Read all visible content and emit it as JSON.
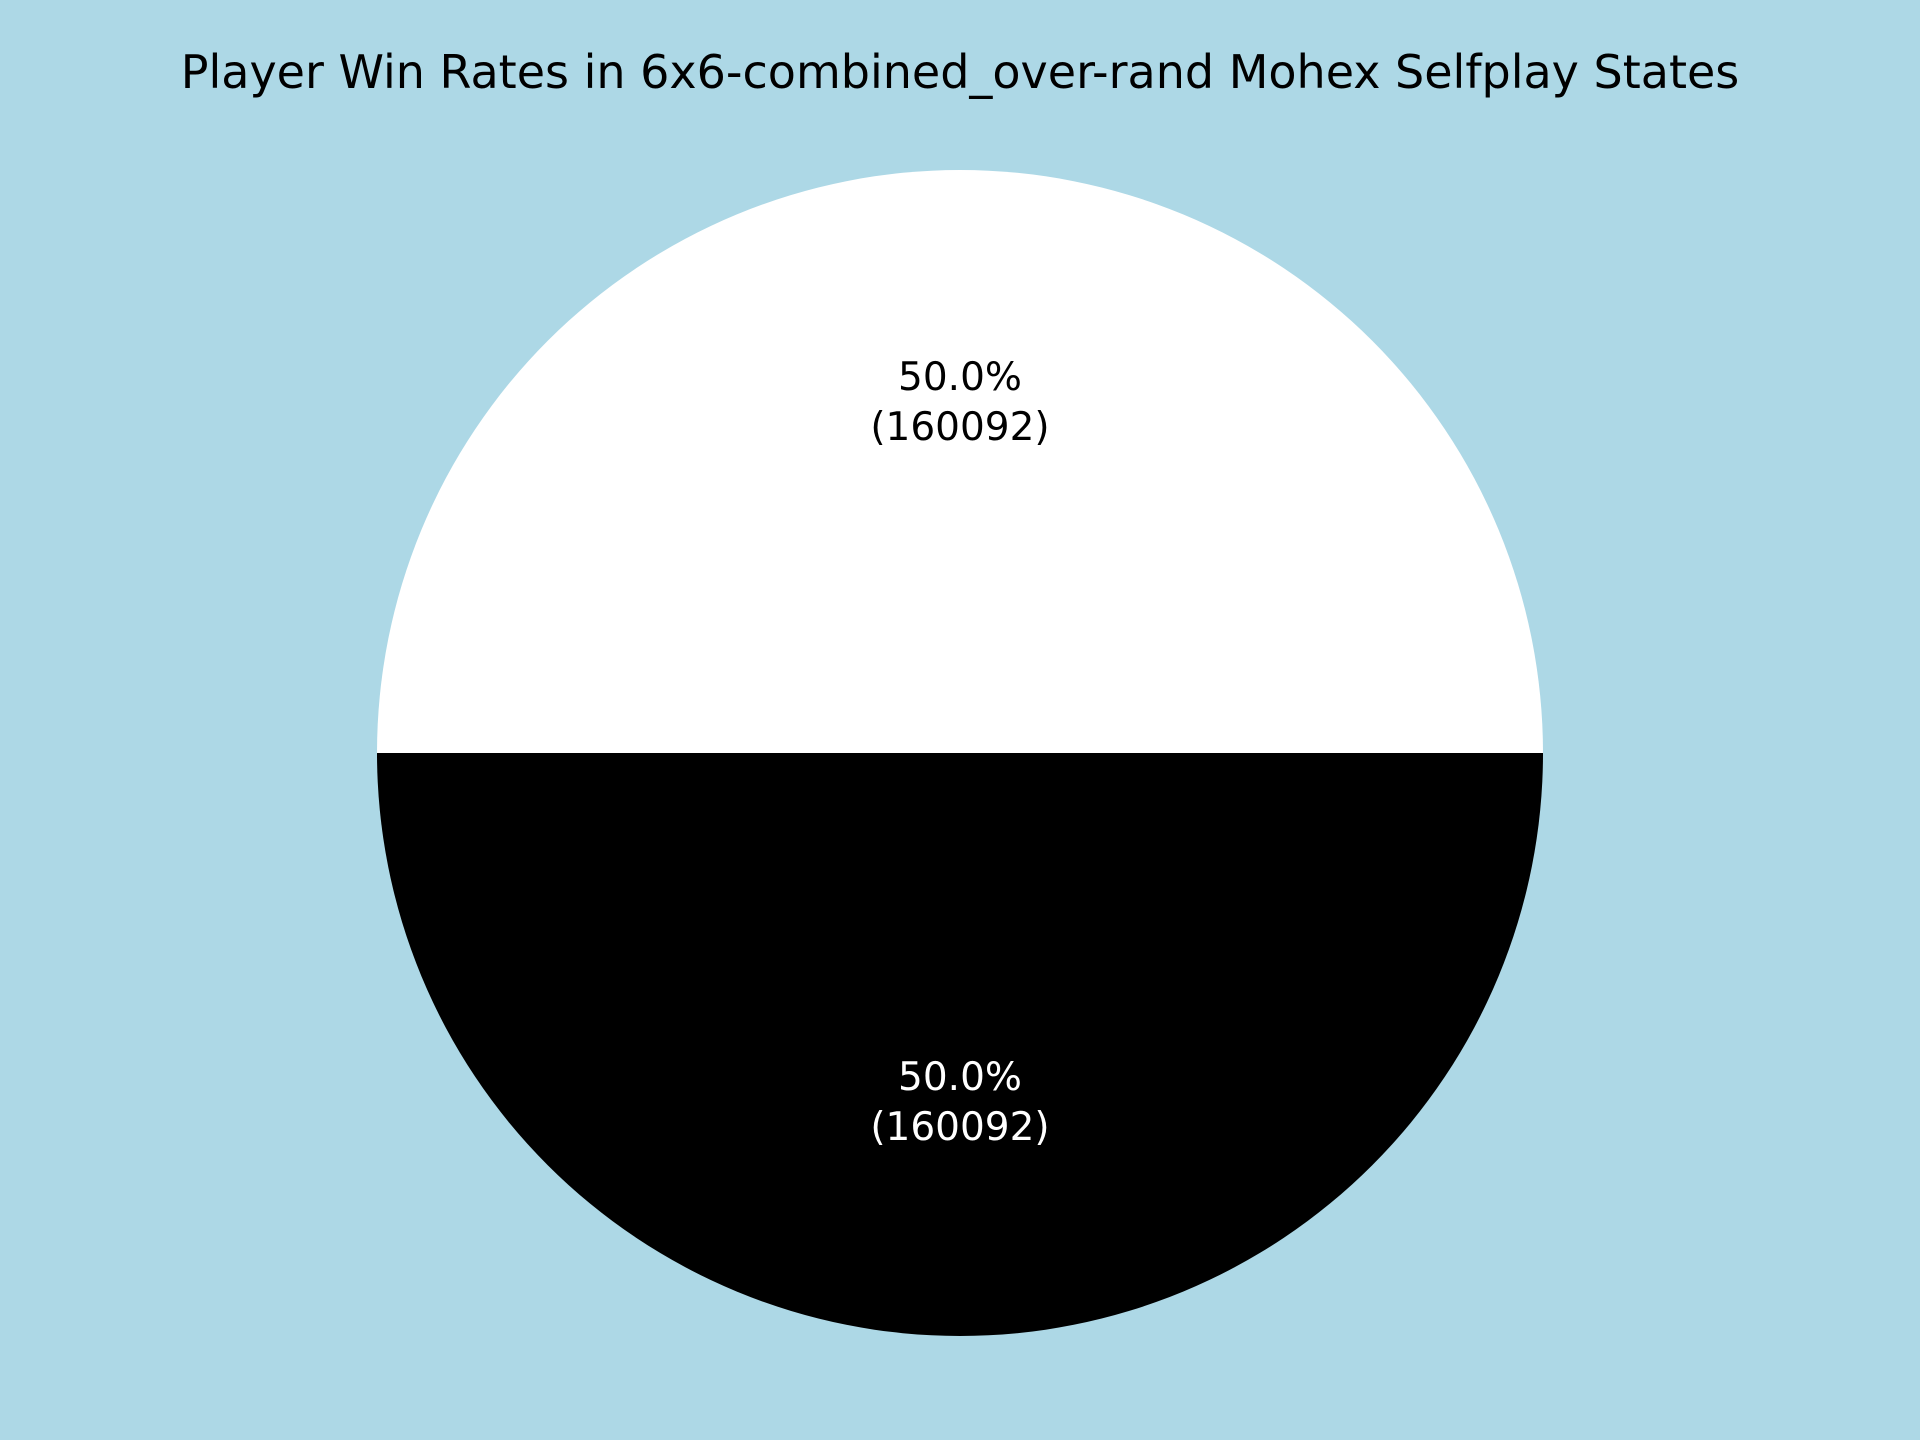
{
  "chart_data": {
    "type": "pie",
    "title": "Player Win Rates in 6x6-combined_over-rand Mohex Selfplay States",
    "background_color": "#add8e6",
    "slices": [
      {
        "value": 160092,
        "percent_label": "50.0%",
        "count_label": "(160092)",
        "color": "#ffffff",
        "label_color": "#000000"
      },
      {
        "value": 160092,
        "percent_label": "50.0%",
        "count_label": "(160092)",
        "color": "#000000",
        "label_color": "#ffffff"
      }
    ],
    "start_angle_deg": 180,
    "direction": "clockwise",
    "legend": "none"
  }
}
